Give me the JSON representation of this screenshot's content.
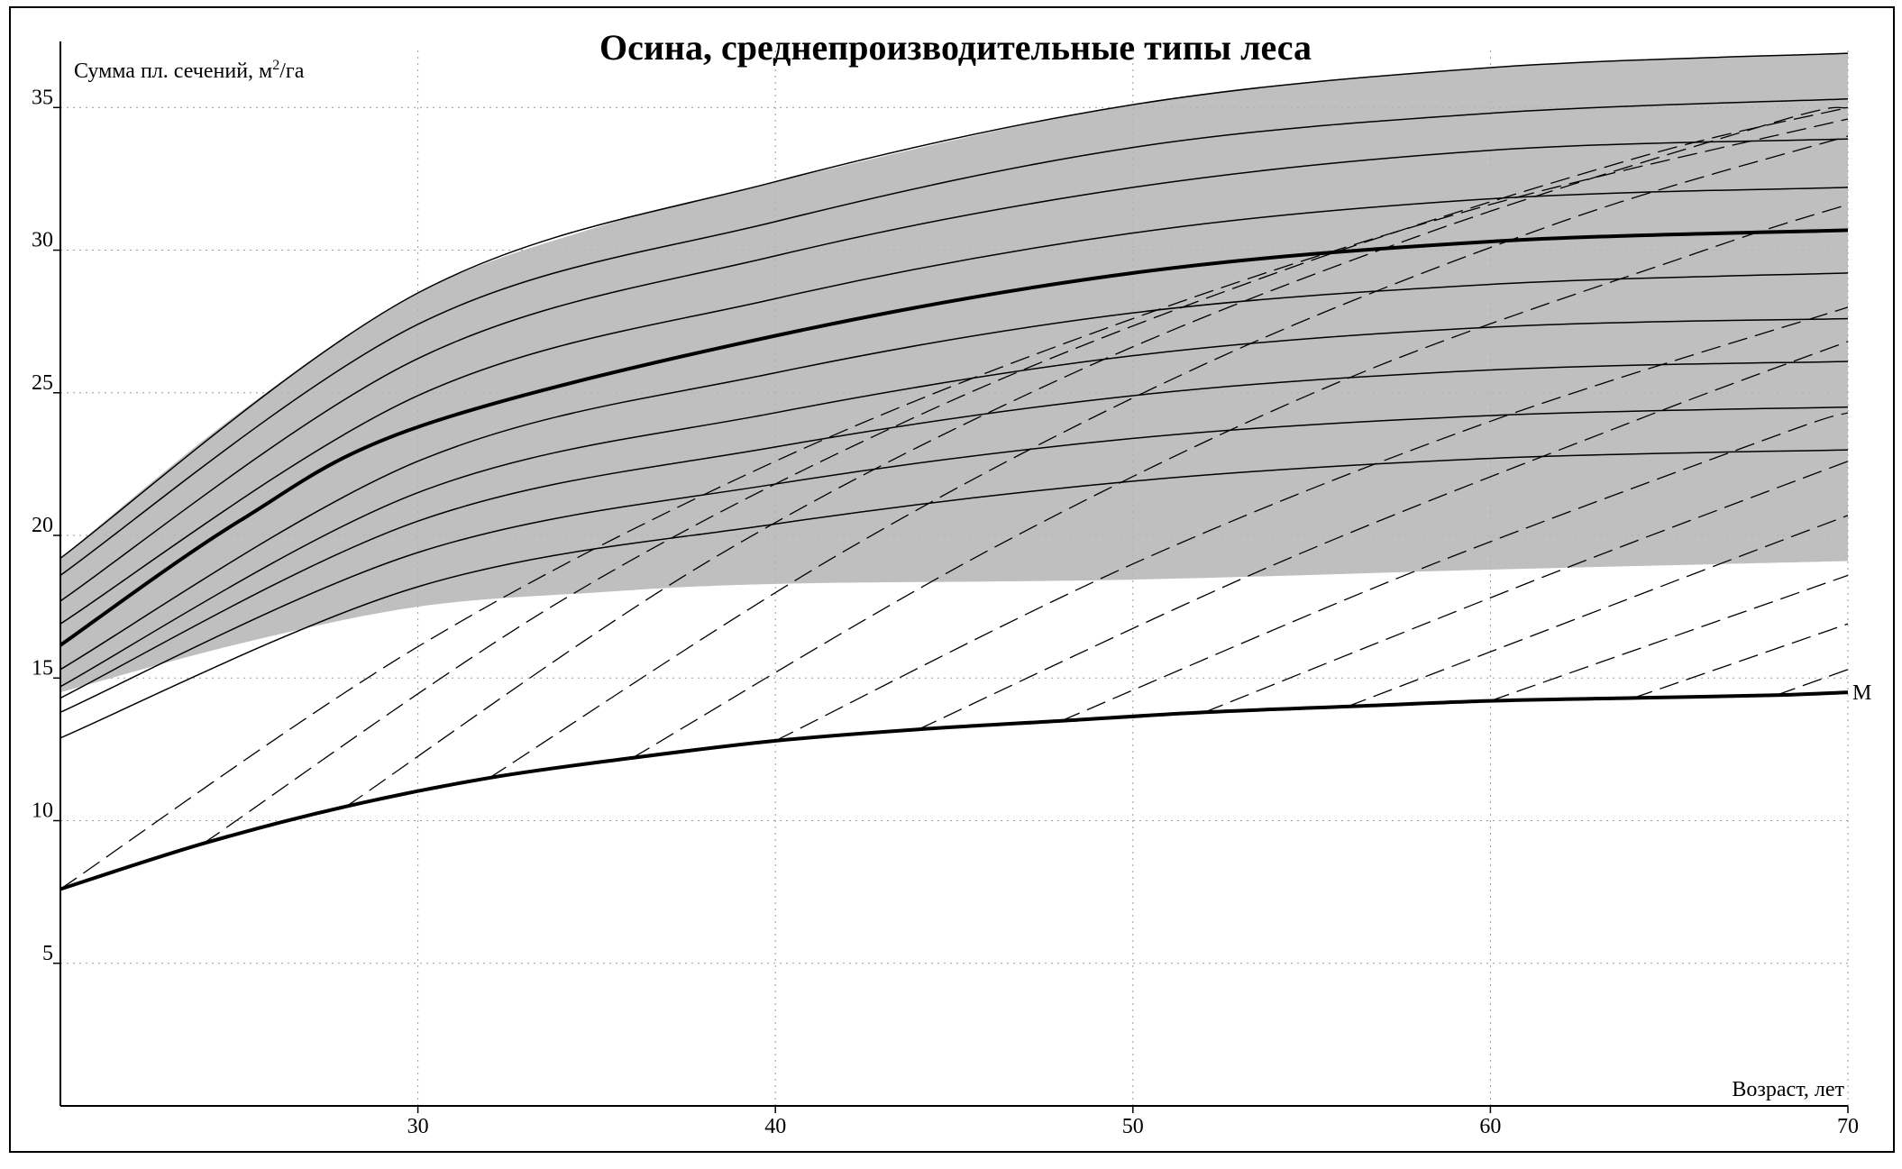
{
  "chart_data": {
    "type": "line",
    "title": "Осина, среднепроизводительные типы леса",
    "y_label": {
      "text": "Сумма пл. сечений, м",
      "sup": "2",
      "suffix": "/га"
    },
    "x_label": "Возраст, лет",
    "xlim": [
      20,
      70
    ],
    "ylim": [
      0,
      37
    ],
    "xticks": [
      30,
      40,
      50,
      60,
      70
    ],
    "yticks": [
      5,
      10,
      15,
      20,
      25,
      30,
      35
    ],
    "grid": true,
    "band": {
      "color": "#b4b4b4",
      "x": [
        20,
        25,
        30,
        35,
        40,
        50,
        60,
        70
      ],
      "upper": [
        19.2,
        24.3,
        28.5,
        30.8,
        32.4,
        35.1,
        36.4,
        36.9
      ],
      "lower": [
        14.5,
        16.2,
        17.5,
        18.0,
        18.3,
        18.45,
        18.8,
        19.1
      ]
    },
    "series": [
      {
        "color": "#000000",
        "width": 1.5,
        "dash": false,
        "x": [
          20,
          30,
          40,
          50,
          60,
          70
        ],
        "values": [
          19.2,
          28.5,
          32.4,
          35.1,
          36.4,
          36.9
        ]
      },
      {
        "color": "#000000",
        "width": 1.5,
        "dash": false,
        "x": [
          20,
          30,
          40,
          50,
          60,
          70
        ],
        "values": [
          18.6,
          27.4,
          31.0,
          33.6,
          34.8,
          35.3
        ]
      },
      {
        "color": "#000000",
        "width": 1.5,
        "dash": false,
        "x": [
          20,
          30,
          40,
          50,
          60,
          70
        ],
        "values": [
          17.7,
          26.2,
          29.8,
          32.2,
          33.5,
          33.9
        ]
      },
      {
        "color": "#000000",
        "width": 1.5,
        "dash": false,
        "x": [
          20,
          30,
          40,
          50,
          60,
          70
        ],
        "values": [
          16.9,
          24.9,
          28.3,
          30.6,
          31.8,
          32.2
        ]
      },
      {
        "color": "#000000",
        "width": 4,
        "dash": false,
        "x": [
          20,
          25,
          30,
          40,
          50,
          60,
          70
        ],
        "values": [
          16.15,
          20.5,
          23.8,
          27.0,
          29.2,
          30.3,
          30.7
        ]
      },
      {
        "color": "#000000",
        "width": 1.5,
        "dash": false,
        "x": [
          20,
          30,
          40,
          50,
          60,
          70
        ],
        "values": [
          15.3,
          22.6,
          25.7,
          27.8,
          28.8,
          29.2
        ]
      },
      {
        "color": "#000000",
        "width": 1.5,
        "dash": false,
        "x": [
          20,
          30,
          40,
          50,
          60,
          70
        ],
        "values": [
          14.7,
          21.5,
          24.3,
          26.3,
          27.3,
          27.6
        ]
      },
      {
        "color": "#000000",
        "width": 1.5,
        "dash": false,
        "x": [
          20,
          30,
          40,
          50,
          60,
          70
        ],
        "values": [
          14.3,
          20.5,
          23.1,
          24.9,
          25.8,
          26.1
        ]
      },
      {
        "color": "#000000",
        "width": 1.5,
        "dash": false,
        "x": [
          20,
          30,
          40,
          50,
          60,
          70
        ],
        "values": [
          13.8,
          19.4,
          21.8,
          23.4,
          24.2,
          24.5
        ]
      },
      {
        "color": "#000000",
        "width": 1.5,
        "dash": false,
        "x": [
          20,
          30,
          40,
          50,
          60,
          70
        ],
        "values": [
          12.9,
          18.2,
          20.4,
          21.9,
          22.7,
          23.0
        ]
      },
      {
        "name": "M",
        "color": "#000000",
        "width": 4,
        "dash": false,
        "x": [
          20,
          24,
          28,
          32,
          36,
          40,
          44,
          48,
          52,
          56,
          60,
          64,
          68,
          70
        ],
        "values": [
          7.6,
          9.2,
          10.5,
          11.5,
          12.2,
          12.8,
          13.2,
          13.5,
          13.8,
          14.0,
          14.2,
          14.3,
          14.4,
          14.5
        ]
      },
      {
        "color": "#000000",
        "width": 1.3,
        "dash": true,
        "x": [
          20,
          30,
          40,
          50,
          60,
          70
        ],
        "values": [
          7.6,
          16.1,
          22.6,
          27.6,
          31.6,
          34.6
        ]
      },
      {
        "color": "#000000",
        "width": 1.3,
        "dash": true,
        "x": [
          24,
          34,
          44,
          54,
          64,
          70
        ],
        "values": [
          9.2,
          17.7,
          24.2,
          29.2,
          33.2,
          35.0
        ]
      },
      {
        "color": "#000000",
        "width": 1.3,
        "dash": true,
        "x": [
          28,
          38,
          48,
          58,
          68,
          70
        ],
        "values": [
          10.5,
          19.0,
          25.5,
          30.5,
          34.5,
          35.0
        ]
      },
      {
        "color": "#000000",
        "width": 1.3,
        "dash": true,
        "x": [
          32,
          42,
          52,
          62,
          70
        ],
        "values": [
          11.5,
          19.5,
          26.0,
          31.0,
          34.0
        ]
      },
      {
        "color": "#000000",
        "width": 1.3,
        "dash": true,
        "x": [
          36,
          46,
          56,
          66,
          70
        ],
        "values": [
          12.2,
          19.5,
          25.5,
          30.0,
          31.6
        ]
      },
      {
        "color": "#000000",
        "width": 1.3,
        "dash": true,
        "x": [
          40,
          50,
          60,
          70
        ],
        "values": [
          12.8,
          19.0,
          24.0,
          28.0
        ]
      },
      {
        "color": "#000000",
        "width": 1.3,
        "dash": true,
        "x": [
          44,
          54,
          64,
          70
        ],
        "values": [
          13.2,
          19.0,
          24.0,
          26.8
        ]
      },
      {
        "color": "#000000",
        "width": 1.3,
        "dash": true,
        "x": [
          48,
          58,
          68,
          70
        ],
        "values": [
          13.5,
          18.8,
          23.5,
          24.3
        ]
      },
      {
        "color": "#000000",
        "width": 1.3,
        "dash": true,
        "x": [
          52,
          62,
          70
        ],
        "values": [
          13.8,
          18.8,
          22.6
        ]
      },
      {
        "color": "#000000",
        "width": 1.3,
        "dash": true,
        "x": [
          56,
          66,
          70
        ],
        "values": [
          14.0,
          18.8,
          20.7
        ]
      },
      {
        "color": "#000000",
        "width": 1.3,
        "dash": true,
        "x": [
          60,
          70
        ],
        "values": [
          14.2,
          18.6
        ]
      },
      {
        "color": "#000000",
        "width": 1.3,
        "dash": true,
        "x": [
          64,
          70
        ],
        "values": [
          14.3,
          16.9
        ]
      },
      {
        "color": "#000000",
        "width": 1.3,
        "dash": true,
        "x": [
          68,
          70
        ],
        "values": [
          14.4,
          15.3
        ]
      }
    ]
  }
}
